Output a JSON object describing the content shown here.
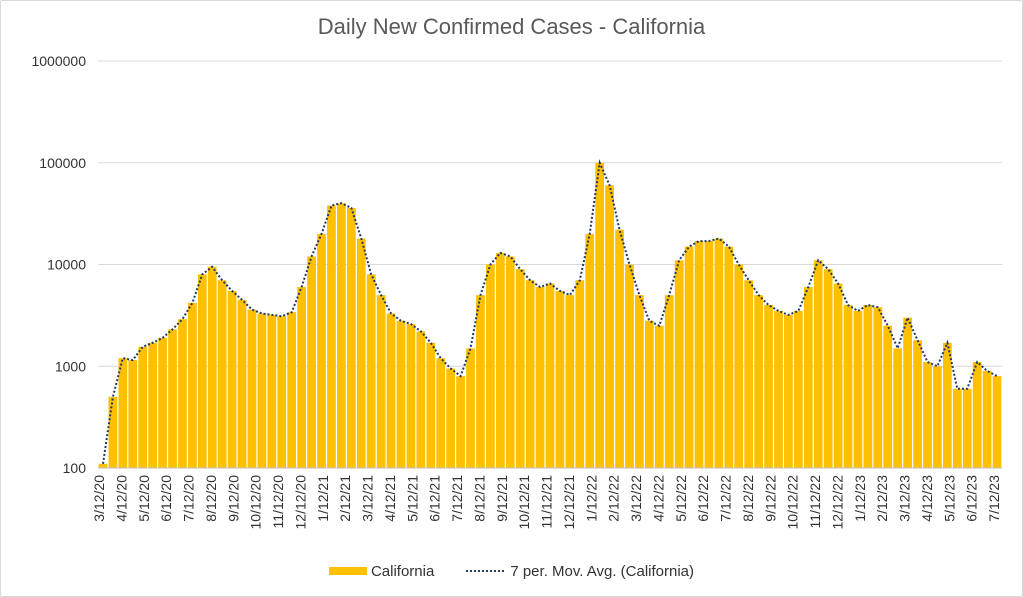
{
  "colors": {
    "bars": "#ffc000",
    "ma_line": "#1f3864",
    "grid": "#d9d9d9",
    "text": "#595959"
  },
  "chart_data": {
    "type": "bar",
    "title": "Daily New Confirmed Cases - California",
    "yscale": "log",
    "ylim": [
      100,
      1000000
    ],
    "y_ticks": [
      "1000000",
      "100000",
      "10000",
      "1000",
      "100"
    ],
    "x_ticks": [
      "3/12/20",
      "4/12/20",
      "5/12/20",
      "6/12/20",
      "7/12/20",
      "8/12/20",
      "9/12/20",
      "10/12/20",
      "11/12/20",
      "12/12/20",
      "1/12/21",
      "2/12/21",
      "3/12/21",
      "4/12/21",
      "5/12/21",
      "6/12/21",
      "7/12/21",
      "8/12/21",
      "9/12/21",
      "10/12/21",
      "11/12/21",
      "12/12/21",
      "1/12/22",
      "2/12/22",
      "3/12/22",
      "4/12/22",
      "5/12/22",
      "6/12/22",
      "7/12/22",
      "8/12/22",
      "9/12/22",
      "10/12/22",
      "11/12/22",
      "12/12/22",
      "1/12/23",
      "2/12/23",
      "3/12/23",
      "4/12/23",
      "5/12/23",
      "6/12/23",
      "7/12/23"
    ],
    "xlabel": "",
    "ylabel": "",
    "legend": [
      "California",
      "7 per. Mov. Avg. (California)"
    ],
    "legend_position": "bottom",
    "series": [
      {
        "name": "California",
        "kind": "bar",
        "values": [
          110,
          500,
          1200,
          1150,
          1550,
          1700,
          1900,
          2300,
          2900,
          4200,
          8000,
          9500,
          7000,
          5500,
          4500,
          3600,
          3300,
          3200,
          3100,
          3400,
          6000,
          12000,
          20000,
          38000,
          40000,
          36000,
          18000,
          8000,
          5000,
          3300,
          2800,
          2600,
          2200,
          1700,
          1200,
          950,
          800,
          1500,
          5000,
          10000,
          13000,
          12000,
          9000,
          7000,
          6000,
          6500,
          5500,
          5000,
          7000,
          20000,
          100000,
          60000,
          22000,
          10000,
          5000,
          2800,
          2500,
          5000,
          11000,
          15000,
          17000,
          17000,
          18000,
          15000,
          10000,
          7000,
          5000,
          4000,
          3500,
          3200,
          3500,
          6000,
          11000,
          9000,
          6500,
          4000,
          3500,
          4000,
          3800,
          2500,
          1500,
          3000,
          1800,
          1100,
          1000,
          1700,
          600,
          600,
          1100,
          900,
          800
        ]
      },
      {
        "name": "7 per. Mov. Avg. (California)",
        "kind": "line",
        "values": [
          110,
          500,
          1200,
          1150,
          1550,
          1700,
          1900,
          2300,
          2900,
          4200,
          8000,
          9500,
          7000,
          5500,
          4500,
          3600,
          3300,
          3200,
          3100,
          3400,
          6000,
          12000,
          20000,
          38000,
          40000,
          36000,
          18000,
          8000,
          5000,
          3300,
          2800,
          2600,
          2200,
          1700,
          1200,
          950,
          800,
          1500,
          5000,
          10000,
          13000,
          12000,
          9000,
          7000,
          6000,
          6500,
          5500,
          5000,
          7000,
          20000,
          100000,
          60000,
          22000,
          10000,
          5000,
          2800,
          2500,
          5000,
          11000,
          15000,
          17000,
          17000,
          18000,
          15000,
          10000,
          7000,
          5000,
          4000,
          3500,
          3200,
          3500,
          6000,
          11000,
          9000,
          6500,
          4000,
          3500,
          4000,
          3800,
          2500,
          1500,
          3000,
          1800,
          1100,
          1000,
          1700,
          600,
          600,
          1100,
          900,
          800
        ]
      }
    ]
  }
}
